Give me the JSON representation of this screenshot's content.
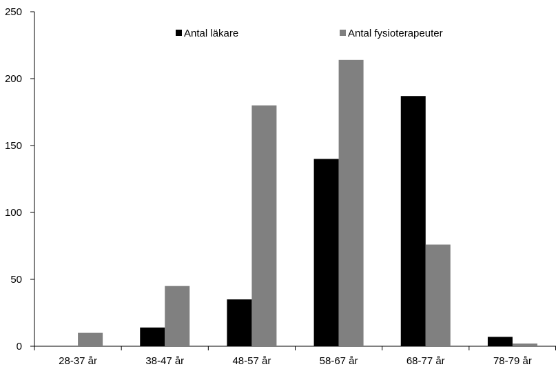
{
  "chart_data": {
    "type": "bar",
    "title": "",
    "xlabel": "",
    "ylabel": "",
    "categories": [
      "28-37 år",
      "38-47 år",
      "48-57 år",
      "58-67 år",
      "68-77 år",
      "78-79 år"
    ],
    "series": [
      {
        "name": "Antal läkare",
        "color": "#000000",
        "values": [
          0,
          14,
          35,
          140,
          187,
          7
        ]
      },
      {
        "name": "Antal fysioterapeuter",
        "color": "#808080",
        "values": [
          10,
          45,
          180,
          214,
          76,
          2
        ]
      }
    ],
    "ylim": [
      0,
      250
    ],
    "yticks": [
      0,
      50,
      100,
      150,
      200,
      250
    ],
    "grid": false,
    "legend_position": "top-center"
  }
}
